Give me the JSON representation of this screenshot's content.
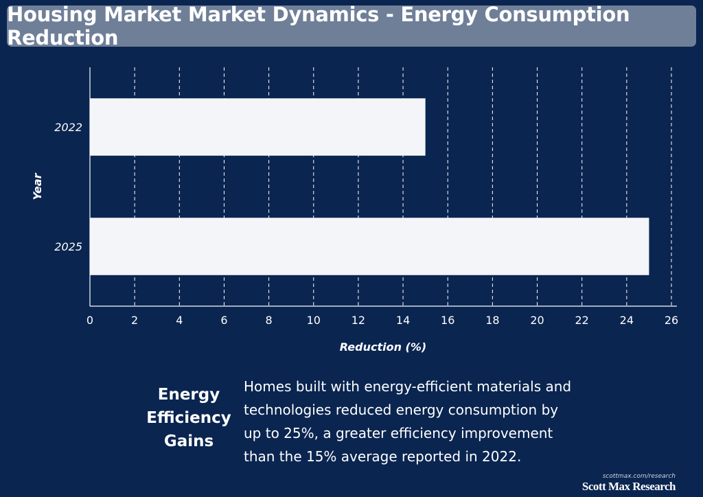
{
  "header": {
    "title": "Housing Market Market Dynamics - Energy Consumption Reduction"
  },
  "chart_data": {
    "type": "bar",
    "orientation": "horizontal",
    "categories": [
      "2022",
      "2025"
    ],
    "values": [
      15,
      25
    ],
    "xlabel": "Reduction (%)",
    "ylabel": "Year",
    "xlim": [
      0,
      26
    ],
    "xticks": [
      "0",
      "2",
      "4",
      "6",
      "8",
      "10",
      "12",
      "14",
      "16",
      "18",
      "20",
      "22",
      "24",
      "26"
    ],
    "grid": "vertical dashed",
    "bar_color": "#f4f5f9"
  },
  "summary": {
    "heading": "Energy Efficiency Gains",
    "text": "Homes built with energy-efficient materials and technologies reduced energy consumption by up to 25%, a greater efficiency improvement than the 15% average reported in 2022."
  },
  "branding": {
    "url": "scottmax.com/research",
    "name": "Scott Max Research"
  },
  "colors": {
    "background": "#0a2550",
    "title_bar": "#6f7f98",
    "bar": "#f4f5f9"
  }
}
